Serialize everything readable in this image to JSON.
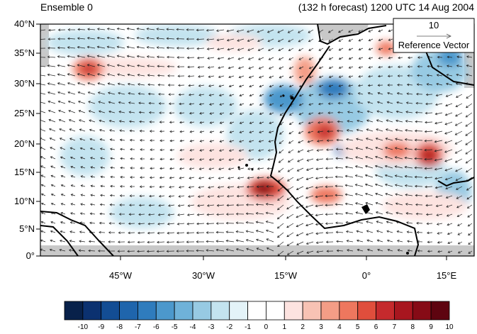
{
  "header": {
    "left_title": "Ensemble 0",
    "right_title": "(132 h forecast) 1200 UTC 14 Aug 2004"
  },
  "map": {
    "lat_labels": [
      "40°N",
      "35°N",
      "30°N",
      "25°N",
      "20°N",
      "15°N",
      "10°N",
      "5°N",
      "0°"
    ],
    "lon_labels": [
      "45°W",
      "30°W",
      "15°W",
      "0°",
      "15°E"
    ],
    "reference_vector": {
      "value": "10",
      "label": "Reference Vector"
    }
  },
  "colorbar": {
    "labels": [
      "-10",
      "-9",
      "-8",
      "-7",
      "-6",
      "-5",
      "-4",
      "-3",
      "-2",
      "-1",
      "0",
      "1",
      "2",
      "3",
      "4",
      "5",
      "6",
      "7",
      "8",
      "9",
      "10"
    ],
    "colors": [
      "#08214a",
      "#0b3170",
      "#134d94",
      "#1f65ac",
      "#2f7cbd",
      "#4c98cc",
      "#6fb2d9",
      "#97cae3",
      "#c3e3ef",
      "#e3f3f8",
      "#ffffff",
      "#ffffff",
      "#fde3e0",
      "#f8c2b4",
      "#f49d86",
      "#ee775e",
      "#e04e3c",
      "#c52a2d",
      "#a8161f",
      "#860b16",
      "#5e0410"
    ]
  }
}
